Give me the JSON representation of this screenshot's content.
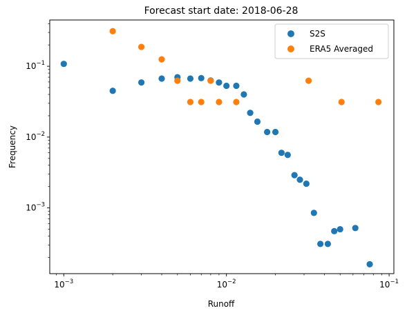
{
  "chart_data": {
    "type": "scatter",
    "title": "Forecast start date: 2018-06-28",
    "xlabel": "Runoff",
    "ylabel": "Frequency",
    "xscale": "log",
    "yscale": "log",
    "xlim": [
      0.00082,
      0.107
    ],
    "ylim": [
      0.000118,
      0.45
    ],
    "x_ticks": [
      {
        "value": 0.001,
        "base": "10",
        "exp": "−3"
      },
      {
        "value": 0.01,
        "base": "10",
        "exp": "−2"
      },
      {
        "value": 0.1,
        "base": "10",
        "exp": "−1"
      }
    ],
    "y_ticks": [
      {
        "value": 0.001,
        "base": "10",
        "exp": "−3"
      },
      {
        "value": 0.01,
        "base": "10",
        "exp": "−2"
      },
      {
        "value": 0.1,
        "base": "10",
        "exp": "−1"
      }
    ],
    "legend_position": "top-right",
    "grid": false,
    "series": [
      {
        "name": "S2S",
        "color": "#1f77b4",
        "points": [
          {
            "x": 0.001,
            "y": 0.108
          },
          {
            "x": 0.002,
            "y": 0.045
          },
          {
            "x": 0.003,
            "y": 0.059
          },
          {
            "x": 0.004,
            "y": 0.067
          },
          {
            "x": 0.005,
            "y": 0.07
          },
          {
            "x": 0.006,
            "y": 0.067
          },
          {
            "x": 0.007,
            "y": 0.068
          },
          {
            "x": 0.008,
            "y": 0.063
          },
          {
            "x": 0.009,
            "y": 0.059
          },
          {
            "x": 0.01,
            "y": 0.053
          },
          {
            "x": 0.0115,
            "y": 0.053
          },
          {
            "x": 0.0128,
            "y": 0.04
          },
          {
            "x": 0.014,
            "y": 0.022
          },
          {
            "x": 0.0155,
            "y": 0.0165
          },
          {
            "x": 0.0178,
            "y": 0.0118
          },
          {
            "x": 0.02,
            "y": 0.0118
          },
          {
            "x": 0.0218,
            "y": 0.006
          },
          {
            "x": 0.0238,
            "y": 0.0056
          },
          {
            "x": 0.0262,
            "y": 0.0029
          },
          {
            "x": 0.0283,
            "y": 0.0025
          },
          {
            "x": 0.031,
            "y": 0.0022
          },
          {
            "x": 0.0345,
            "y": 0.00085
          },
          {
            "x": 0.0378,
            "y": 0.00031
          },
          {
            "x": 0.042,
            "y": 0.00031
          },
          {
            "x": 0.046,
            "y": 0.00047
          },
          {
            "x": 0.05,
            "y": 0.0005
          },
          {
            "x": 0.062,
            "y": 0.00052
          },
          {
            "x": 0.076,
            "y": 0.00016
          }
        ]
      },
      {
        "name": "ERA5 Averaged",
        "color": "#ff7f0e",
        "points": [
          {
            "x": 0.002,
            "y": 0.3125
          },
          {
            "x": 0.003,
            "y": 0.1875
          },
          {
            "x": 0.004,
            "y": 0.125
          },
          {
            "x": 0.005,
            "y": 0.0625
          },
          {
            "x": 0.006,
            "y": 0.03125
          },
          {
            "x": 0.007,
            "y": 0.03125
          },
          {
            "x": 0.008,
            "y": 0.0625
          },
          {
            "x": 0.009,
            "y": 0.03125
          },
          {
            "x": 0.0115,
            "y": 0.03125
          },
          {
            "x": 0.032,
            "y": 0.0625
          },
          {
            "x": 0.051,
            "y": 0.03125
          },
          {
            "x": 0.086,
            "y": 0.03125
          }
        ]
      }
    ]
  }
}
